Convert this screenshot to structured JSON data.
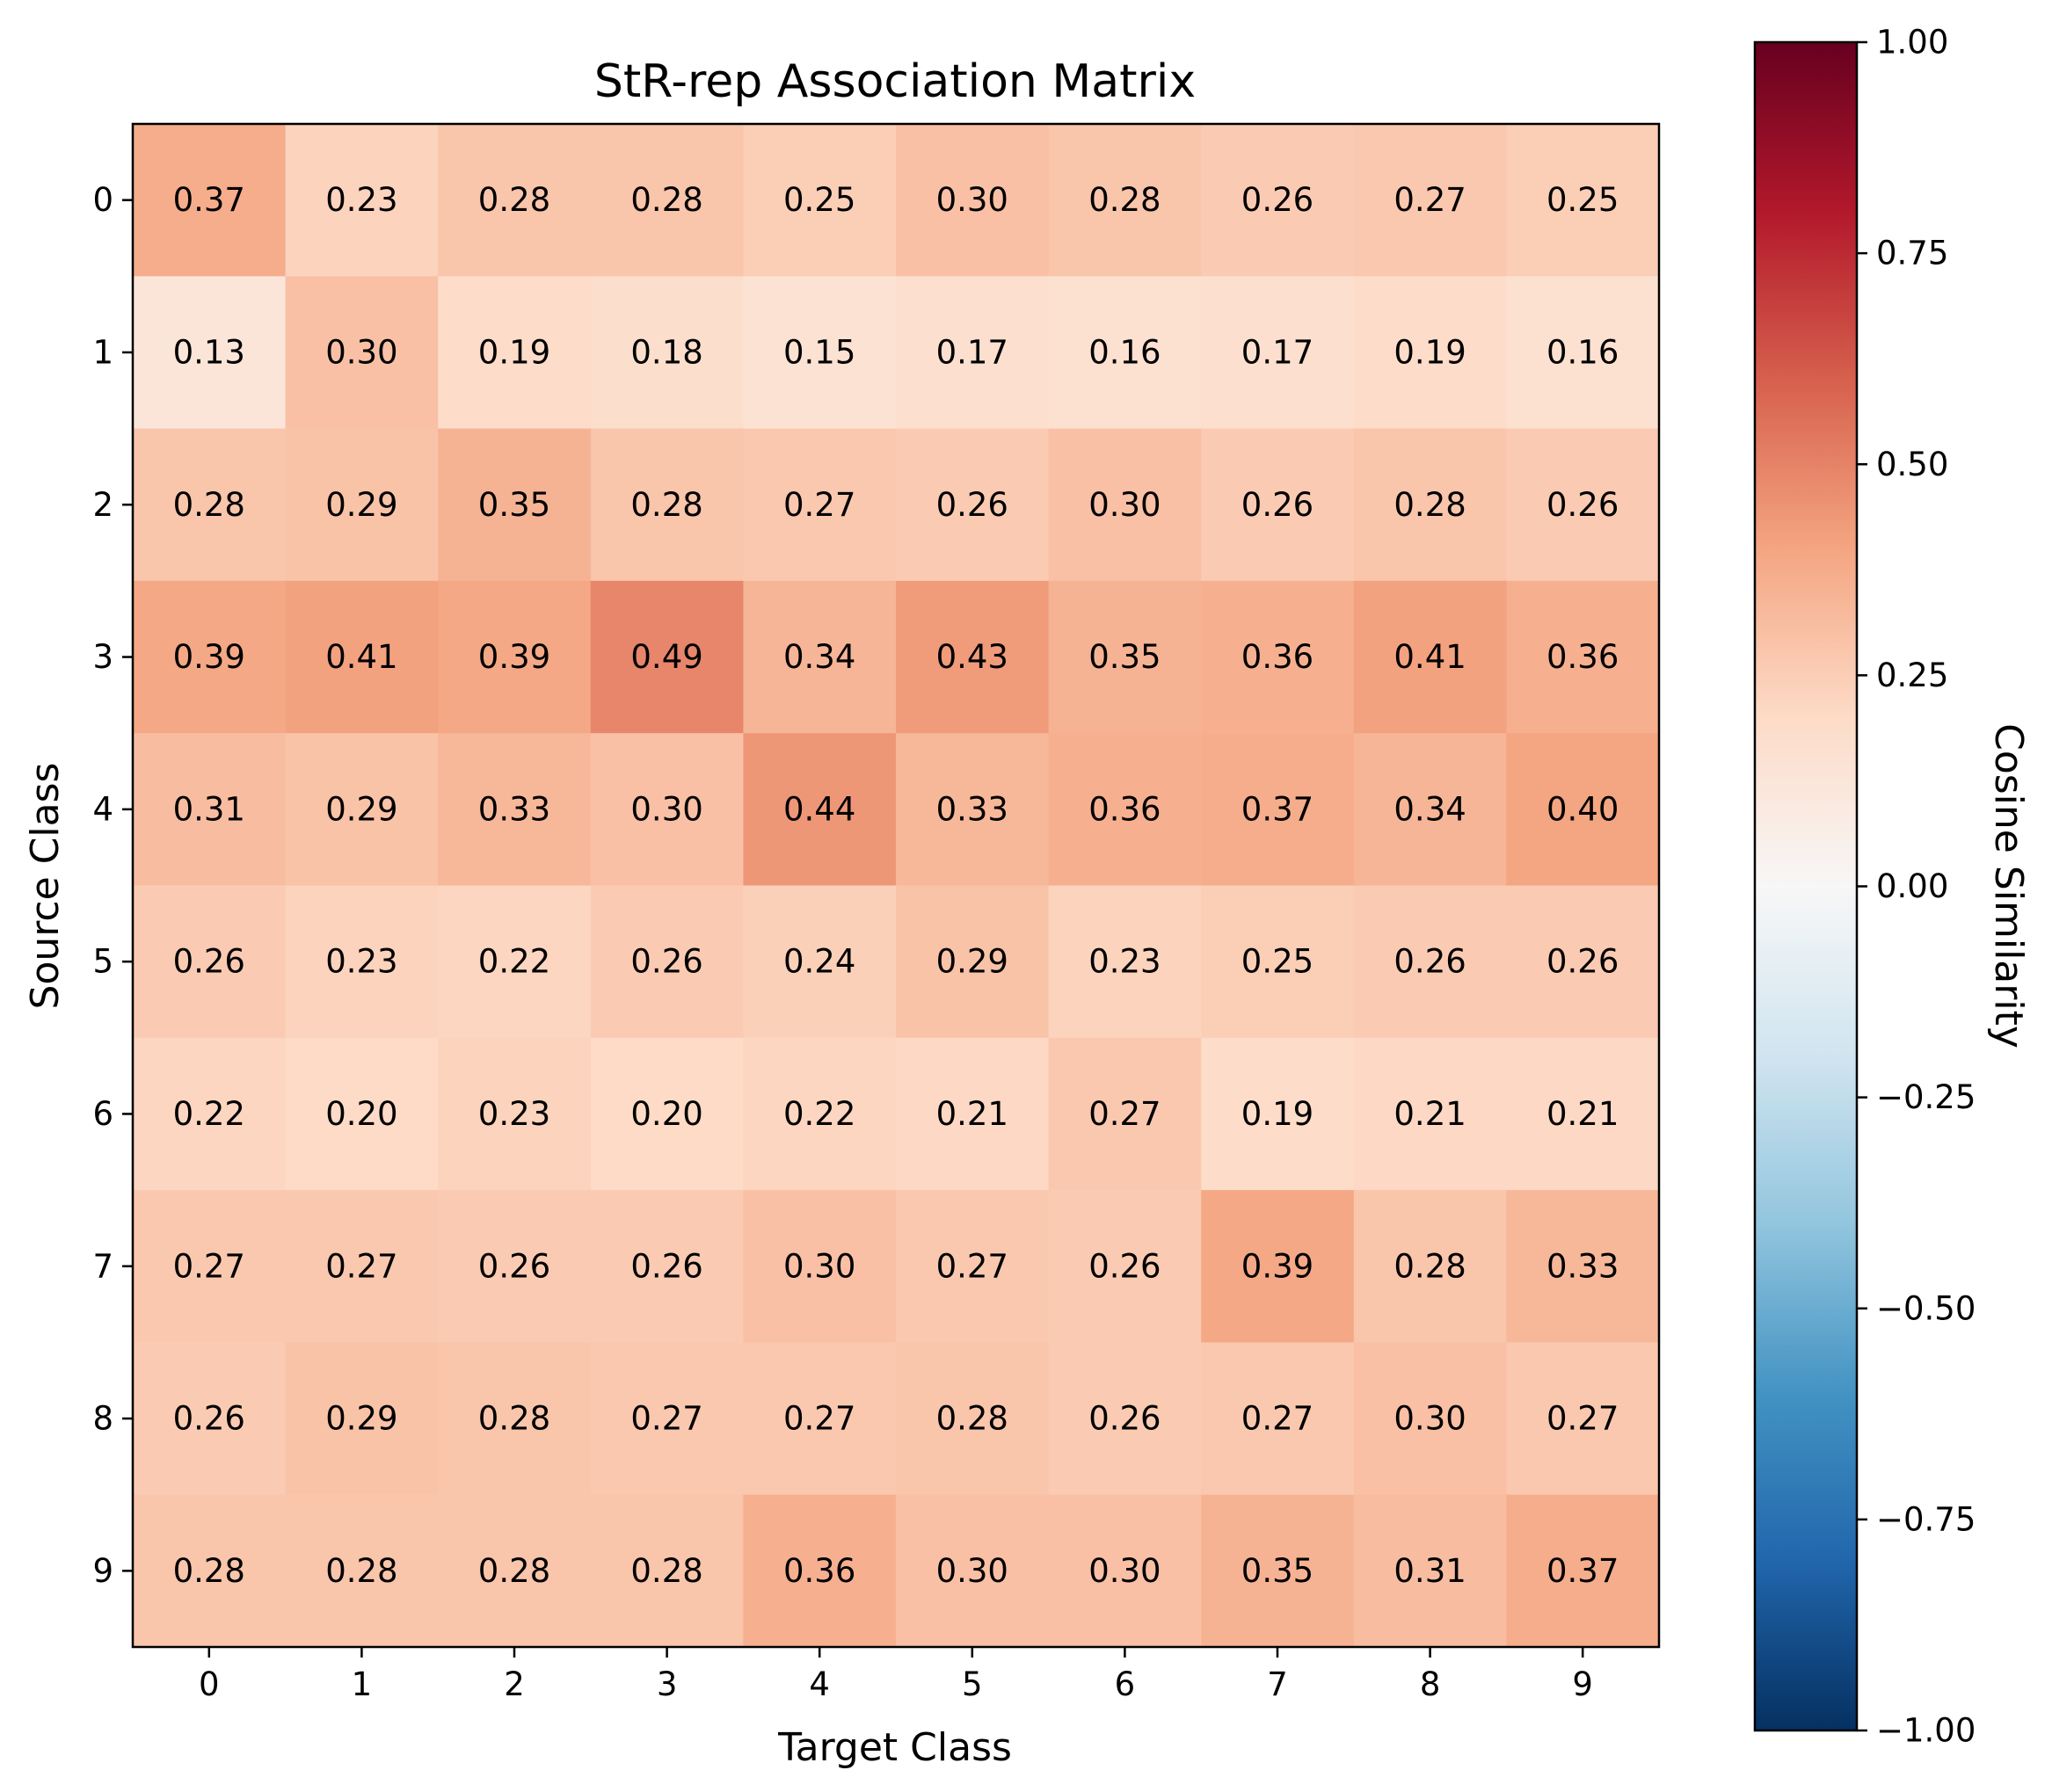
{
  "chart_data": {
    "type": "heatmap",
    "title": "StR-rep Association Matrix",
    "xlabel": "Target Class",
    "ylabel": "Source Class",
    "x_categories": [
      "0",
      "1",
      "2",
      "3",
      "4",
      "5",
      "6",
      "7",
      "8",
      "9"
    ],
    "y_categories": [
      "0",
      "1",
      "2",
      "3",
      "4",
      "5",
      "6",
      "7",
      "8",
      "9"
    ],
    "values": [
      [
        0.37,
        0.23,
        0.28,
        0.28,
        0.25,
        0.3,
        0.28,
        0.26,
        0.27,
        0.25
      ],
      [
        0.13,
        0.3,
        0.19,
        0.18,
        0.15,
        0.17,
        0.16,
        0.17,
        0.19,
        0.16
      ],
      [
        0.28,
        0.29,
        0.35,
        0.28,
        0.27,
        0.26,
        0.3,
        0.26,
        0.28,
        0.26
      ],
      [
        0.39,
        0.41,
        0.39,
        0.49,
        0.34,
        0.43,
        0.35,
        0.36,
        0.41,
        0.36
      ],
      [
        0.31,
        0.29,
        0.33,
        0.3,
        0.44,
        0.33,
        0.36,
        0.37,
        0.34,
        0.4
      ],
      [
        0.26,
        0.23,
        0.22,
        0.26,
        0.24,
        0.29,
        0.23,
        0.25,
        0.26,
        0.26
      ],
      [
        0.22,
        0.2,
        0.23,
        0.2,
        0.22,
        0.21,
        0.27,
        0.19,
        0.21,
        0.21
      ],
      [
        0.27,
        0.27,
        0.26,
        0.26,
        0.3,
        0.27,
        0.26,
        0.39,
        0.28,
        0.33
      ],
      [
        0.26,
        0.29,
        0.28,
        0.27,
        0.27,
        0.28,
        0.26,
        0.27,
        0.3,
        0.27
      ],
      [
        0.28,
        0.28,
        0.28,
        0.28,
        0.36,
        0.3,
        0.3,
        0.35,
        0.31,
        0.37
      ]
    ],
    "value_format_decimals": 2,
    "colorbar": {
      "label": "Cosine Similarity",
      "range": [
        -1.0,
        1.0
      ],
      "ticks": [
        "1.00",
        "0.75",
        "0.50",
        "0.25",
        "0.00",
        "−0.25",
        "−0.50",
        "−0.75",
        "−1.00"
      ],
      "tick_values": [
        1.0,
        0.75,
        0.5,
        0.25,
        0.0,
        -0.25,
        -0.5,
        -0.75,
        -1.0
      ],
      "colormap": "RdBu_r",
      "colormap_stops": [
        "#053061",
        "#2166ac",
        "#4393c3",
        "#92c5de",
        "#d1e5f0",
        "#f7f7f7",
        "#fddbc7",
        "#f4a582",
        "#d6604d",
        "#b2182b",
        "#67001f"
      ]
    },
    "grid": false,
    "legend": "none"
  }
}
